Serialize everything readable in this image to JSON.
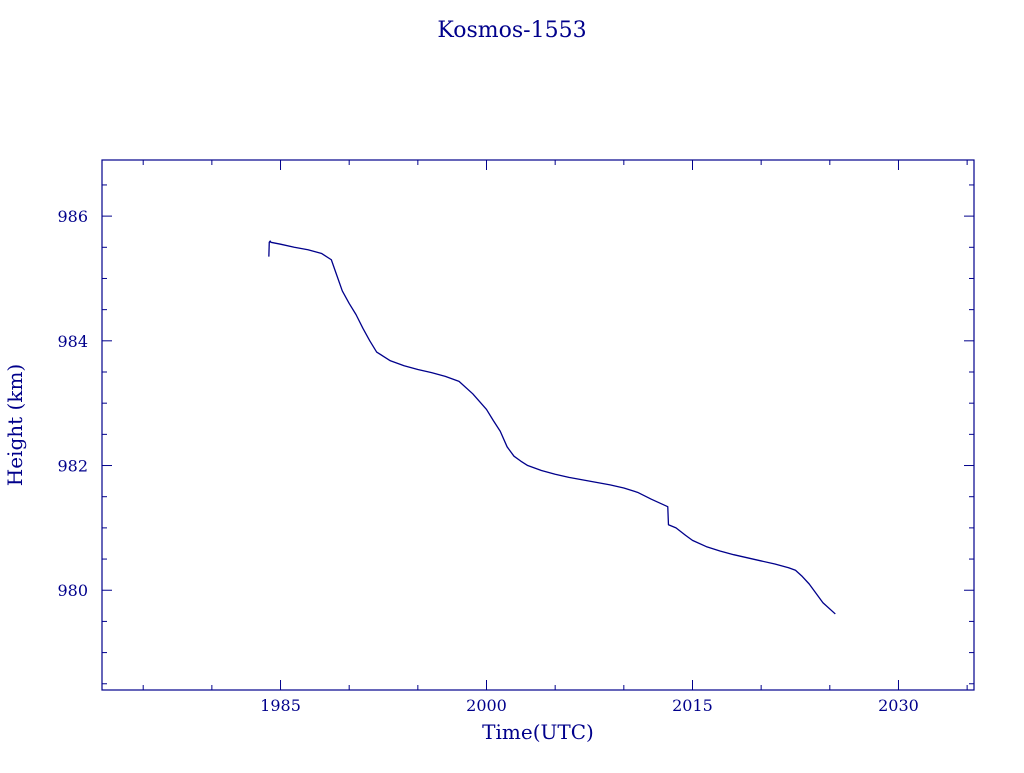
{
  "chart_data": {
    "type": "line",
    "title": "Kosmos-1553",
    "xlabel": "Time(UTC)",
    "ylabel": "Height (km)",
    "xlim": [
      1972,
      2035.5
    ],
    "ylim": [
      978.4,
      986.9
    ],
    "x_major_ticks": [
      1985,
      2000,
      2015,
      2030
    ],
    "x_tick_labels": [
      "1985",
      "2000",
      "2015",
      "2030"
    ],
    "y_major_ticks": [
      980,
      982,
      984,
      986
    ],
    "y_tick_labels": [
      "980",
      "982",
      "984",
      "986"
    ],
    "x_minor_step": 5,
    "y_minor_step": 0.5,
    "grid": false,
    "legend": "none",
    "color": "#00008B",
    "series": [
      {
        "x": [
          1984.15,
          1984.18,
          1984.25,
          1984.3,
          1985,
          1986,
          1987,
          1988,
          1988.7,
          1989.1,
          1989.5,
          1990.0,
          1990.5,
          1991.0,
          1991.5,
          1992.0,
          1992.5,
          1993.0,
          1994,
          1995,
          1996,
          1997,
          1998,
          1999,
          2000,
          2000.5,
          2001.0,
          2001.5,
          2002.0,
          2002.5,
          2003,
          2004,
          2005,
          2006,
          2007,
          2008,
          2009,
          2010,
          2011,
          2012,
          2013.2,
          2013.25,
          2013.8,
          2014.5,
          2015,
          2016,
          2017,
          2018,
          2019,
          2020,
          2021,
          2022,
          2022.5,
          2023,
          2023.5,
          2024,
          2024.5,
          2025.4
        ],
        "y": [
          985.35,
          985.58,
          985.6,
          985.58,
          985.55,
          985.5,
          985.46,
          985.4,
          985.3,
          985.05,
          984.8,
          984.6,
          984.42,
          984.2,
          984.0,
          983.82,
          983.75,
          983.68,
          983.6,
          983.54,
          983.49,
          983.43,
          983.35,
          983.15,
          982.9,
          982.72,
          982.55,
          982.3,
          982.15,
          982.07,
          982.0,
          981.92,
          981.86,
          981.81,
          981.77,
          981.73,
          981.69,
          981.64,
          981.57,
          981.46,
          981.34,
          981.05,
          981.0,
          980.88,
          980.8,
          980.7,
          980.63,
          980.57,
          980.52,
          980.47,
          980.42,
          980.36,
          980.32,
          980.22,
          980.1,
          979.95,
          979.8,
          979.62
        ]
      }
    ]
  }
}
